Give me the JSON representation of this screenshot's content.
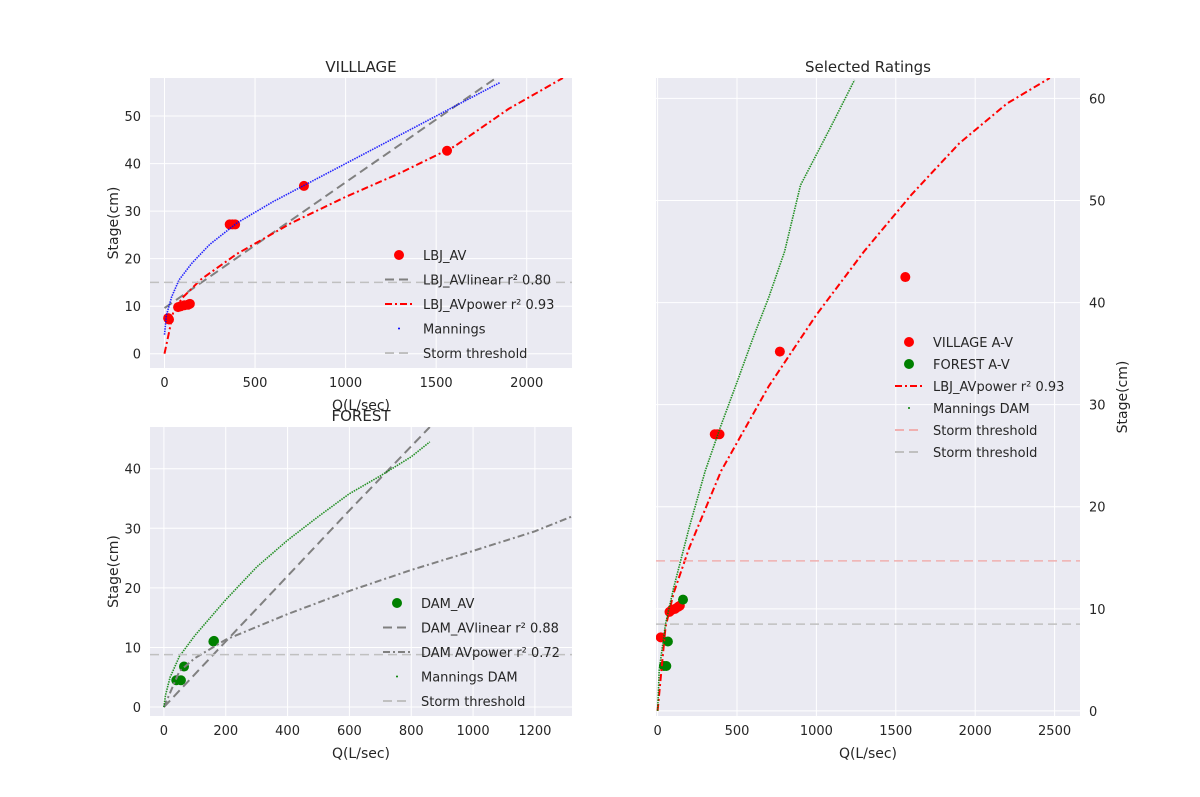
{
  "chart_data": [
    {
      "id": "village",
      "type": "scatter",
      "title": "VILLLAGE",
      "xlabel": "Q(L/sec)",
      "ylabel": "Stage(cm)",
      "xlim": [
        -80,
        2250
      ],
      "ylim": [
        -3,
        58
      ],
      "xticks": [
        0,
        500,
        1000,
        1500,
        2000
      ],
      "yticks": [
        0,
        10,
        20,
        30,
        40,
        50
      ],
      "grid": true,
      "legend_position": "center-right",
      "storm_threshold_stage": 15,
      "series": [
        {
          "name": "LBJ_AV",
          "kind": "markers",
          "color": "#ff0000",
          "points": [
            [
              20,
              7.5
            ],
            [
              25,
              7.2
            ],
            [
              75,
              9.8
            ],
            [
              90,
              10
            ],
            [
              110,
              10.2
            ],
            [
              130,
              10.3
            ],
            [
              140,
              10.5
            ],
            [
              360,
              27.2
            ],
            [
              375,
              27.2
            ],
            [
              390,
              27.2
            ],
            [
              770,
              35.3
            ],
            [
              1560,
              42.7
            ]
          ]
        },
        {
          "name": "LBJ_AVlinear r² 0.80",
          "kind": "line",
          "style": "dashed",
          "color": "#808080",
          "points": [
            [
              0,
              9.6
            ],
            [
              1830,
              58
            ]
          ]
        },
        {
          "name": "LBJ_AVpower r² 0.93",
          "kind": "line",
          "style": "dashdot",
          "color": "#ff0000",
          "points": [
            [
              0,
              0
            ],
            [
              50,
              9
            ],
            [
              100,
              11.8
            ],
            [
              200,
              15.6
            ],
            [
              400,
              21
            ],
            [
              700,
              27.5
            ],
            [
              1000,
              33
            ],
            [
              1300,
              38
            ],
            [
              1600,
              43.6
            ],
            [
              1900,
              51.5
            ],
            [
              2200,
              58
            ]
          ]
        },
        {
          "name": "Mannings",
          "kind": "dots",
          "color": "#0000ff",
          "points": [
            [
              0,
              4
            ],
            [
              10,
              8
            ],
            [
              40,
              12
            ],
            [
              80,
              15.5
            ],
            [
              150,
              19
            ],
            [
              250,
              23
            ],
            [
              400,
              27.5
            ],
            [
              600,
              32
            ],
            [
              800,
              36
            ],
            [
              1000,
              40
            ],
            [
              1200,
              44
            ],
            [
              1400,
              48
            ],
            [
              1600,
              52
            ],
            [
              1800,
              56
            ],
            [
              1850,
              57
            ]
          ]
        },
        {
          "name": "Storm threshold",
          "kind": "hline",
          "style": "dashed",
          "color": "#c0c0c0",
          "y": 15
        }
      ]
    },
    {
      "id": "forest",
      "type": "scatter",
      "title": "FOREST",
      "xlabel": "Q(L/sec)",
      "ylabel": "Stage(cm)",
      "xlim": [
        -45,
        1320
      ],
      "ylim": [
        -1.5,
        47
      ],
      "xticks": [
        0,
        200,
        400,
        600,
        800,
        1000,
        1200
      ],
      "yticks": [
        0,
        10,
        20,
        30,
        40
      ],
      "grid": true,
      "legend_position": "center-right",
      "storm_threshold_stage": 8.8,
      "series": [
        {
          "name": "DAM_AV",
          "kind": "markers",
          "color": "#008000",
          "points": [
            [
              40,
              4.5
            ],
            [
              55,
              4.5
            ],
            [
              65,
              6.8
            ],
            [
              160,
              11
            ],
            [
              162,
              11.1
            ]
          ]
        },
        {
          "name": "DAM_AVlinear r² 0.88",
          "kind": "line",
          "style": "dashed",
          "color": "#808080",
          "points": [
            [
              0,
              0
            ],
            [
              200,
              11
            ],
            [
              400,
              22
            ],
            [
              600,
              33
            ],
            [
              860,
              47
            ]
          ]
        },
        {
          "name": "DAM AVpower r² 0.72",
          "kind": "line",
          "style": "dashdot",
          "color": "#808080",
          "points": [
            [
              0,
              0
            ],
            [
              50,
              6
            ],
            [
              100,
              8.2
            ],
            [
              200,
              11.3
            ],
            [
              400,
              15.6
            ],
            [
              600,
              19.5
            ],
            [
              800,
              23
            ],
            [
              1000,
              26.2
            ],
            [
              1200,
              29.5
            ],
            [
              1320,
              32
            ]
          ]
        },
        {
          "name": "Mannings DAM",
          "kind": "dots",
          "color": "#008000",
          "points": [
            [
              0,
              0
            ],
            [
              5,
              2
            ],
            [
              20,
              5
            ],
            [
              50,
              8.5
            ],
            [
              100,
              12
            ],
            [
              200,
              18
            ],
            [
              300,
              23.5
            ],
            [
              400,
              28
            ],
            [
              500,
              32
            ],
            [
              600,
              35.8
            ],
            [
              700,
              38.8
            ],
            [
              800,
              42
            ],
            [
              860,
              44.5
            ]
          ]
        },
        {
          "name": "Storm threshold",
          "kind": "hline",
          "style": "dashed",
          "color": "#c0c0c0",
          "y": 8.8
        }
      ]
    },
    {
      "id": "selected",
      "type": "scatter",
      "title": "Selected Ratings",
      "xlabel": "Q(L/sec)",
      "ylabel": "Stage(cm)",
      "xlim": [
        -10,
        2660
      ],
      "ylim": [
        -0.5,
        62
      ],
      "xticks": [
        0,
        500,
        1000,
        1500,
        2000,
        2500
      ],
      "yticks": [
        0,
        10,
        20,
        30,
        40,
        50,
        60
      ],
      "y_axis_side": "right",
      "grid": true,
      "legend_position": "center-right",
      "series": [
        {
          "name": "VILLAGE A-V",
          "kind": "markers",
          "color": "#ff0000",
          "points": [
            [
              20,
              7.2
            ],
            [
              75,
              9.7
            ],
            [
              90,
              9.9
            ],
            [
              110,
              10
            ],
            [
              130,
              10.2
            ],
            [
              140,
              10.3
            ],
            [
              360,
              27.1
            ],
            [
              375,
              27.1
            ],
            [
              390,
              27.1
            ],
            [
              770,
              35.2
            ],
            [
              1560,
              42.5
            ]
          ]
        },
        {
          "name": "FOREST A-V",
          "kind": "markers",
          "color": "#008000",
          "points": [
            [
              40,
              4.4
            ],
            [
              55,
              4.4
            ],
            [
              65,
              6.8
            ],
            [
              160,
              10.9
            ]
          ]
        },
        {
          "name": "LBJ_AVpower r² 0.93",
          "kind": "line",
          "style": "dashdot",
          "color": "#ff0000",
          "points": [
            [
              0,
              0
            ],
            [
              50,
              8.2
            ],
            [
              100,
              11.5
            ],
            [
              200,
              16
            ],
            [
              400,
              23.5
            ],
            [
              700,
              31.8
            ],
            [
              1000,
              38.8
            ],
            [
              1300,
              45
            ],
            [
              1600,
              50.6
            ],
            [
              1900,
              55.6
            ],
            [
              2200,
              59.5
            ],
            [
              2470,
              62
            ]
          ]
        },
        {
          "name": "Mannings DAM",
          "kind": "dots",
          "color": "#008000",
          "points": [
            [
              0,
              0
            ],
            [
              10,
              4
            ],
            [
              50,
              8.5
            ],
            [
              100,
              12
            ],
            [
              200,
              18
            ],
            [
              300,
              23.5
            ],
            [
              400,
              28
            ],
            [
              500,
              32.2
            ],
            [
              600,
              36.5
            ],
            [
              700,
              40.5
            ],
            [
              800,
              45
            ],
            [
              900,
              51.5
            ],
            [
              1000,
              54.5
            ],
            [
              1100,
              57.5
            ],
            [
              1240,
              61.8
            ]
          ]
        },
        {
          "name": "Storm threshold",
          "kind": "hline",
          "style": "dashed",
          "color": "#f0b0b0",
          "y": 14.7
        },
        {
          "name": "Storm threshold",
          "kind": "hline",
          "style": "dashed",
          "color": "#c0c0c0",
          "y": 8.5
        }
      ]
    }
  ]
}
